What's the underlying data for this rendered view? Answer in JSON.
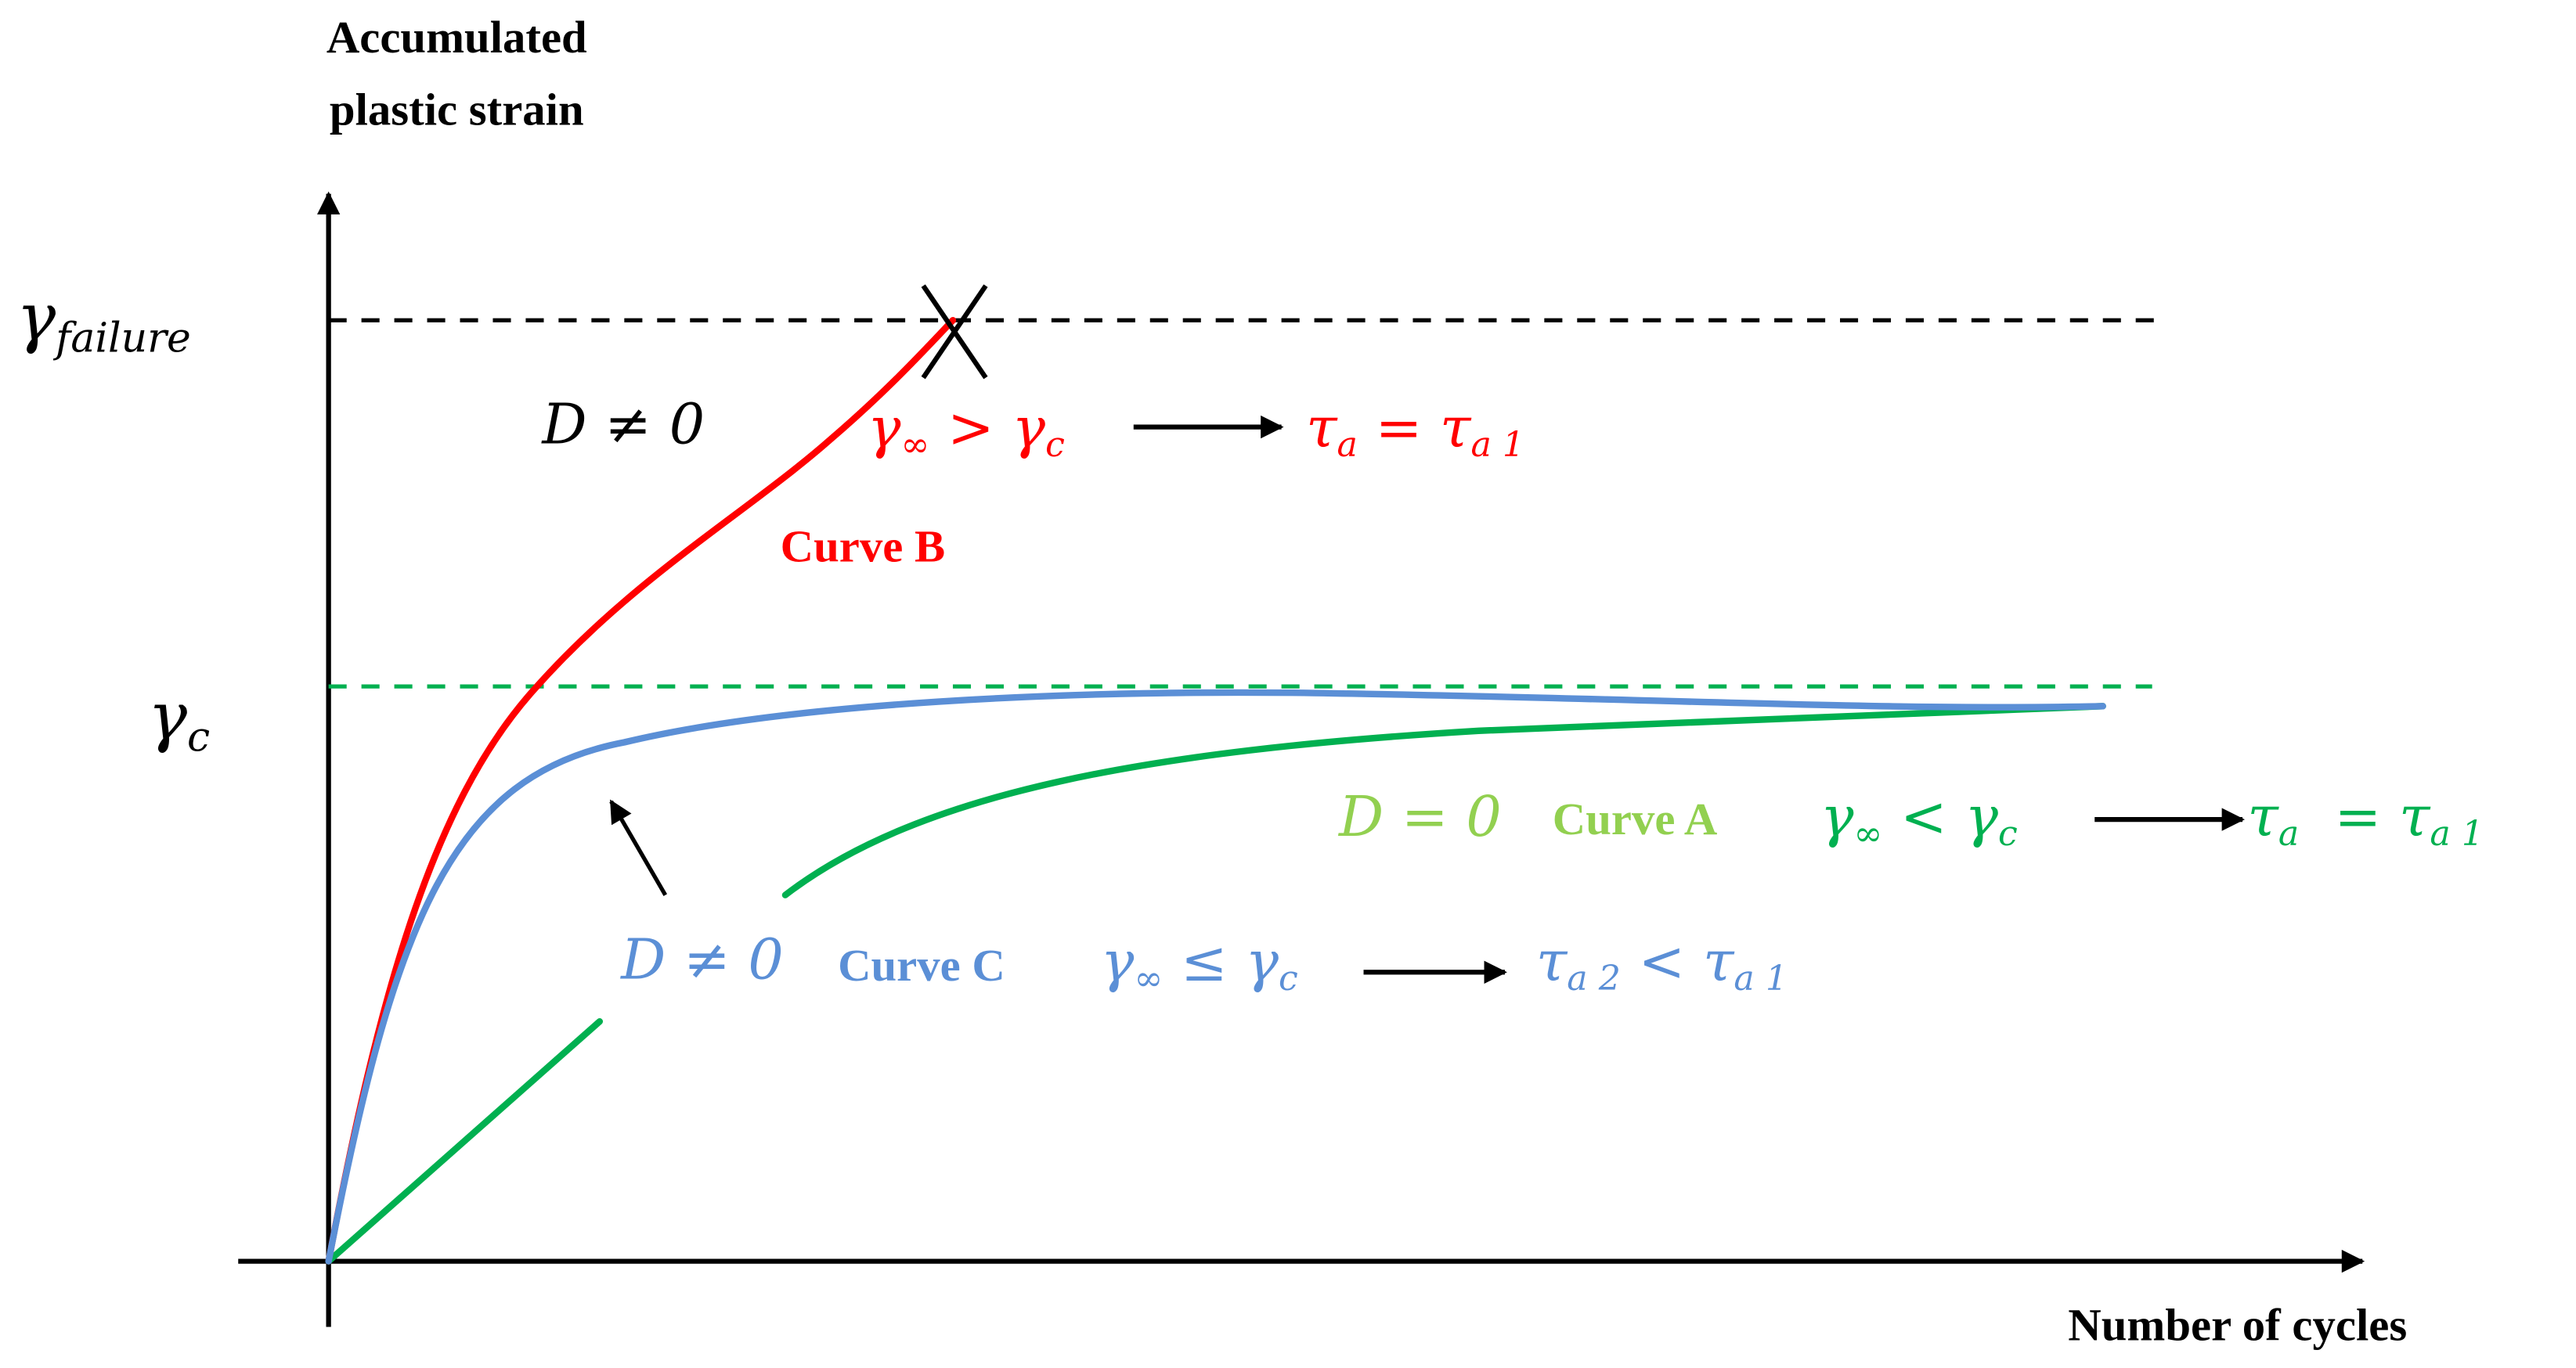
{
  "labels": {
    "y_axis": [
      "Accumulated",
      "plastic strain"
    ],
    "x_axis": "Number of cycles",
    "gamma_failure": [
      {
        "text": "γ"
      },
      {
        "sub": "failure"
      }
    ],
    "gamma_c": [
      {
        "text": "γ"
      },
      {
        "sub": "c"
      }
    ]
  },
  "curves": [
    {
      "name": "Curve B",
      "damage": "D ≠ 0",
      "color": "#ff0000",
      "label_color": "#ff0000",
      "damage_color": "#000000",
      "condition": [
        {
          "text": "γ"
        },
        {
          "sub": "∞"
        },
        {
          "text": " > γ"
        },
        {
          "sub": "c"
        }
      ],
      "result": [
        {
          "text": "τ"
        },
        {
          "sub": "a"
        },
        {
          "text": " = τ"
        },
        {
          "sub": "a 1"
        }
      ]
    },
    {
      "name": "Curve A",
      "damage": "D = 0",
      "color": "#00b050",
      "label_color": "#92d050",
      "damage_color": "#92d050",
      "condition": [
        {
          "text": "γ"
        },
        {
          "sub": "∞"
        },
        {
          "text": " < γ"
        },
        {
          "sub": "c"
        }
      ],
      "result": [
        {
          "text": "τ"
        },
        {
          "sub": "a"
        },
        {
          "text": "  = τ"
        },
        {
          "sub": "a 1"
        }
      ]
    },
    {
      "name": "Curve C",
      "damage": "D ≠ 0",
      "color": "#5b8fd6",
      "label_color": "#5b8fd6",
      "damage_color": "#5b8fd6",
      "condition": [
        {
          "text": "γ"
        },
        {
          "sub": "∞"
        },
        {
          "text": " ≤ γ"
        },
        {
          "sub": "c"
        }
      ],
      "result": [
        {
          "text": "τ"
        },
        {
          "sub": "a 2"
        },
        {
          "text": " < τ"
        },
        {
          "sub": "a 1"
        }
      ]
    }
  ]
}
